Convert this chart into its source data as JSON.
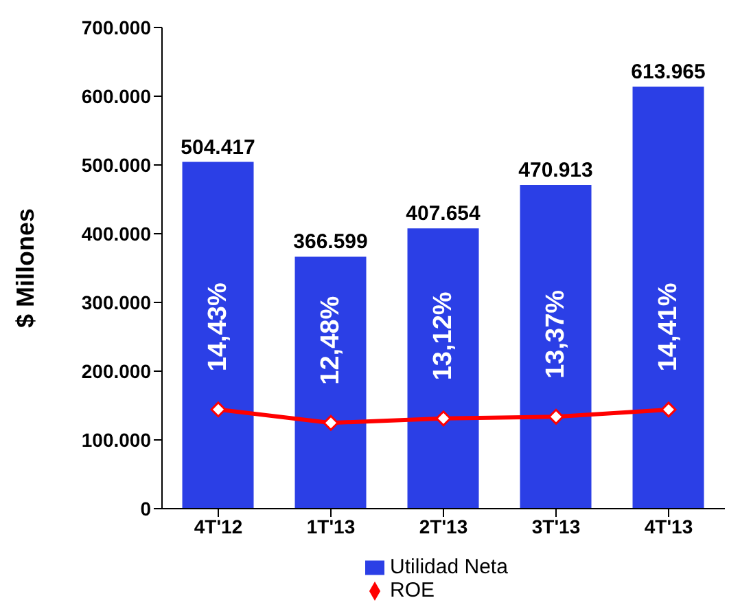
{
  "chart_data": {
    "type": "bar",
    "ylabel": "$ Millones",
    "categories": [
      "4T'12",
      "1T'13",
      "2T'13",
      "3T'13",
      "4T'13"
    ],
    "series": [
      {
        "name": "Utilidad Neta",
        "color": "#2b3fe6",
        "values": [
          504417,
          366599,
          407654,
          470913,
          613965
        ],
        "value_labels": [
          "504.417",
          "366.599",
          "407.654",
          "470.913",
          "613.965"
        ]
      },
      {
        "name": "ROE",
        "type": "line",
        "axis": "y2",
        "color": "#ff0000",
        "values": [
          14.43,
          12.48,
          13.12,
          13.37,
          14.41
        ],
        "value_labels": [
          "14,43%",
          "12,48%",
          "13,12%",
          "13,37%",
          "14,41%"
        ]
      }
    ],
    "ylim": [
      0,
      700000
    ],
    "yticks": [
      {
        "value": 0,
        "label": "0"
      },
      {
        "value": 100000,
        "label": "100.000"
      },
      {
        "value": 200000,
        "label": "200.000"
      },
      {
        "value": 300000,
        "label": "300.000"
      },
      {
        "value": 400000,
        "label": "400.000"
      },
      {
        "value": 500000,
        "label": "500.000"
      },
      {
        "value": 600000,
        "label": "600.000"
      },
      {
        "value": 700000,
        "label": "700.000"
      }
    ],
    "y2lim": [
      0,
      70
    ],
    "marker": "diamond",
    "legend": "bottom"
  }
}
